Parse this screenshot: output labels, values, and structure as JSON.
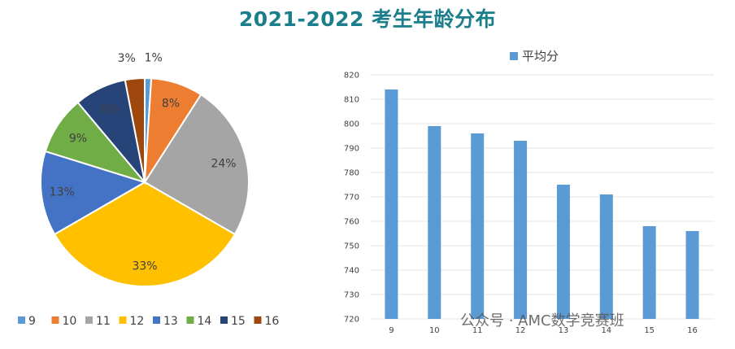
{
  "title": "2021-2022 考生年龄分布",
  "watermark": "公众号 · AMC数学竞赛班",
  "chart_data": [
    {
      "type": "pie",
      "categories": [
        "9",
        "10",
        "11",
        "12",
        "13",
        "14",
        "15",
        "16"
      ],
      "values": [
        1,
        8,
        24,
        33,
        13,
        9,
        8,
        3
      ],
      "labels": [
        "1%",
        "8%",
        "24%",
        "33%",
        "13%",
        "9%",
        "8%",
        "3%"
      ],
      "colors": [
        "#5b9bd5",
        "#ed7d31",
        "#a5a5a5",
        "#ffc000",
        "#4472c4",
        "#70ad47",
        "#264478",
        "#9e480e"
      ],
      "legend_position": "bottom"
    },
    {
      "type": "bar",
      "categories": [
        "9",
        "10",
        "11",
        "12",
        "13",
        "14",
        "15",
        "16"
      ],
      "series": [
        {
          "name": "平均分",
          "values": [
            814,
            799,
            796,
            793,
            775,
            771,
            758,
            756
          ],
          "color": "#5b9bd5"
        }
      ],
      "ylim": [
        720,
        820
      ],
      "yticks": [
        720,
        730,
        740,
        750,
        760,
        770,
        780,
        790,
        800,
        810,
        820
      ],
      "grid": true,
      "legend_position": "top"
    }
  ]
}
